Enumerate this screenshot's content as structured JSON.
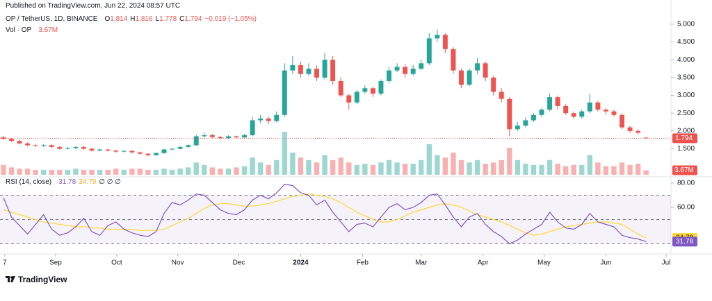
{
  "header": {
    "published": "Published on TradingView.com, Jun 22, 2024 08:57 UTC"
  },
  "chart_data": {
    "type": "candlestick",
    "symbol": "OP / TetherUS, 1D, BINANCE",
    "quote": [
      {
        "label": "O",
        "value": 1.814
      },
      {
        "label": "H",
        "value": 1.816
      },
      {
        "label": "L",
        "value": 1.778
      },
      {
        "label": "C",
        "value": 1.794
      }
    ],
    "change": "−0.019 (−1.05%)",
    "open": [
      1.82,
      1.78,
      1.72,
      1.65,
      1.6,
      1.58,
      1.6,
      1.55,
      1.5,
      1.52,
      1.55,
      1.5,
      1.45,
      1.48,
      1.45,
      1.42,
      1.44,
      1.4,
      1.36,
      1.32,
      1.38,
      1.48,
      1.5,
      1.55,
      1.6,
      1.85,
      1.88,
      1.83,
      1.8,
      1.85,
      1.82,
      1.88,
      2.3,
      2.35,
      2.28,
      2.45,
      3.7,
      3.85,
      3.6,
      3.75,
      3.5,
      4.0,
      3.4,
      3.0,
      2.8,
      3.1,
      3.2,
      3.05,
      3.4,
      3.7,
      3.8,
      3.6,
      3.75,
      3.9,
      4.6,
      4.7,
      4.3,
      3.7,
      3.3,
      3.7,
      3.9,
      3.5,
      3.1,
      2.9,
      2.05,
      2.15,
      2.3,
      2.45,
      2.6,
      2.95,
      2.7,
      2.5,
      2.4,
      2.55,
      2.8,
      2.6,
      2.55,
      2.45,
      2.1,
      2.0,
      1.814
    ],
    "high": [
      1.86,
      1.8,
      1.75,
      1.68,
      1.63,
      1.63,
      1.63,
      1.58,
      1.55,
      1.58,
      1.58,
      1.53,
      1.5,
      1.5,
      1.47,
      1.47,
      1.46,
      1.42,
      1.38,
      1.4,
      1.5,
      1.53,
      1.58,
      1.63,
      1.9,
      1.95,
      1.92,
      1.86,
      1.88,
      1.87,
      1.92,
      2.4,
      2.45,
      2.4,
      2.55,
      3.9,
      4.1,
      3.95,
      3.9,
      3.85,
      4.2,
      4.1,
      3.5,
      3.05,
      3.15,
      3.28,
      3.25,
      3.45,
      3.8,
      3.9,
      3.88,
      3.85,
      4.0,
      4.75,
      4.85,
      4.75,
      4.35,
      3.75,
      3.75,
      4.05,
      3.95,
      3.55,
      3.2,
      2.95,
      2.25,
      2.38,
      2.5,
      2.65,
      3.05,
      3.0,
      2.75,
      2.55,
      2.6,
      3.05,
      2.85,
      2.65,
      2.6,
      2.5,
      2.15,
      2.05,
      1.816
    ],
    "low": [
      1.75,
      1.7,
      1.62,
      1.57,
      1.55,
      1.55,
      1.52,
      1.47,
      1.48,
      1.49,
      1.47,
      1.42,
      1.43,
      1.42,
      1.39,
      1.4,
      1.37,
      1.33,
      1.29,
      1.3,
      1.36,
      1.45,
      1.48,
      1.52,
      1.58,
      1.82,
      1.79,
      1.76,
      1.77,
      1.78,
      1.79,
      1.85,
      2.22,
      2.2,
      2.24,
      2.4,
      3.6,
      3.5,
      3.55,
      3.4,
      3.45,
      3.3,
      2.95,
      2.6,
      2.75,
      3.05,
      2.95,
      3.0,
      3.35,
      3.65,
      3.5,
      3.55,
      3.7,
      3.85,
      4.5,
      4.2,
      3.6,
      3.2,
      3.25,
      3.6,
      3.4,
      3.0,
      2.8,
      1.85,
      2.0,
      2.1,
      2.25,
      2.4,
      2.55,
      2.6,
      2.45,
      2.35,
      2.35,
      2.5,
      2.55,
      2.45,
      2.4,
      2.05,
      1.95,
      1.9,
      1.778
    ],
    "close": [
      1.78,
      1.72,
      1.65,
      1.6,
      1.58,
      1.6,
      1.55,
      1.5,
      1.52,
      1.55,
      1.5,
      1.45,
      1.48,
      1.45,
      1.42,
      1.44,
      1.4,
      1.36,
      1.32,
      1.38,
      1.48,
      1.5,
      1.55,
      1.6,
      1.85,
      1.88,
      1.83,
      1.8,
      1.85,
      1.82,
      1.88,
      2.3,
      2.35,
      2.28,
      2.45,
      3.7,
      3.85,
      3.6,
      3.75,
      3.5,
      4.0,
      3.4,
      3.0,
      2.8,
      3.1,
      3.2,
      3.05,
      3.4,
      3.7,
      3.8,
      3.6,
      3.75,
      3.9,
      4.6,
      4.7,
      4.3,
      3.7,
      3.3,
      3.7,
      3.9,
      3.5,
      3.1,
      2.9,
      2.05,
      2.15,
      2.3,
      2.45,
      2.6,
      2.95,
      2.7,
      2.5,
      2.4,
      2.55,
      2.8,
      2.6,
      2.55,
      2.45,
      2.1,
      2.0,
      1.95,
      1.794
    ],
    "up_color": "#26a69a",
    "down_color": "#ef5350",
    "xlim": [
      -0.43,
      83.1
    ],
    "xticks": [
      {
        "value": 0.17,
        "label": "7"
      },
      {
        "value": 6.49,
        "label": "Sep"
      },
      {
        "value": 14.1,
        "label": "Oct"
      },
      {
        "value": 21.7,
        "label": "Nov"
      },
      {
        "value": 29.3,
        "label": "Dec"
      },
      {
        "value": 37.0,
        "label": "2024"
      },
      {
        "value": 44.7,
        "label": "Feb"
      },
      {
        "value": 52.0,
        "label": "Mar"
      },
      {
        "value": 59.7,
        "label": "Apr"
      },
      {
        "value": 67.3,
        "label": "May"
      },
      {
        "value": 75.0,
        "label": "Jun"
      },
      {
        "value": 82.5,
        "label": "Jul"
      }
    ],
    "ylim": [
      0.77,
      5.25
    ],
    "yticks": [
      {
        "value": 5,
        "label": "5.000"
      },
      {
        "value": 4.5,
        "label": "4.500"
      },
      {
        "value": 4,
        "label": "4.000"
      },
      {
        "value": 3.5,
        "label": "3.500"
      },
      {
        "value": 3,
        "label": "3.000"
      },
      {
        "value": 2.5,
        "label": "2.500"
      },
      {
        "value": 2,
        "label": "2.000"
      },
      {
        "value": 1.5,
        "label": "1.500"
      }
    ],
    "volume": {
      "name": "Vol · OP",
      "last_label": "3.67M",
      "ylim": [
        0,
        35
      ],
      "values": [
        8,
        6,
        5,
        5,
        4,
        4,
        4,
        4,
        4,
        5,
        4,
        4,
        4,
        4,
        5,
        4,
        5,
        5,
        4,
        4,
        5,
        4,
        5,
        6,
        10,
        8,
        6,
        5,
        5,
        6,
        7,
        14,
        10,
        8,
        12,
        35,
        18,
        14,
        12,
        10,
        16,
        12,
        14,
        10,
        8,
        9,
        8,
        10,
        12,
        10,
        9,
        9,
        12,
        25,
        16,
        14,
        18,
        12,
        10,
        12,
        9,
        10,
        12,
        22,
        12,
        9,
        8,
        8,
        12,
        9,
        7,
        8,
        8,
        16,
        10,
        7,
        7,
        10,
        8,
        9,
        3.67
      ]
    },
    "rsi": {
      "name": "RSI (14, close)",
      "color": "#7e57c2",
      "na": "∅ ∅ ∅",
      "values": [
        68,
        52,
        45,
        38,
        46,
        54,
        42,
        37,
        39,
        44,
        51,
        40,
        37,
        45,
        48,
        42,
        39,
        37,
        36,
        40,
        55,
        64,
        62,
        66,
        71,
        70,
        64,
        58,
        55,
        54,
        58,
        66,
        70,
        67,
        72,
        79,
        78,
        72,
        70,
        62,
        66,
        56,
        48,
        40,
        46,
        47,
        44,
        52,
        60,
        63,
        58,
        60,
        64,
        70,
        71,
        62,
        52,
        44,
        52,
        55,
        46,
        40,
        36,
        30,
        33,
        38,
        42,
        46,
        56,
        48,
        43,
        42,
        46,
        55,
        48,
        46,
        44,
        37,
        35,
        34,
        31.78
      ],
      "ma": {
        "color": "#fdd835",
        "values": [
          58,
          56,
          54,
          52,
          50,
          48,
          47,
          46,
          45,
          44,
          44,
          43,
          43,
          42,
          42,
          42,
          42,
          41,
          41,
          41,
          42,
          45,
          48,
          51,
          55,
          59,
          62,
          63,
          63,
          62,
          61,
          61,
          62,
          63,
          65,
          67,
          69,
          70,
          71,
          70,
          69,
          67,
          64,
          60,
          56,
          53,
          50,
          48,
          48,
          50,
          53,
          56,
          58,
          60,
          62,
          63,
          62,
          60,
          57,
          54,
          52,
          50,
          48,
          45,
          42,
          39,
          37,
          38,
          40,
          42,
          44,
          45,
          46,
          47,
          48,
          48,
          47,
          46,
          42,
          38,
          34.79
        ]
      },
      "ylim": [
        24,
        83.4
      ],
      "yticks": [
        {
          "value": 80,
          "label": "80.00"
        },
        {
          "value": 60,
          "label": "60.00"
        }
      ],
      "bands": [
        70,
        50,
        30
      ]
    }
  },
  "footer": {
    "brand": "TradingView"
  }
}
